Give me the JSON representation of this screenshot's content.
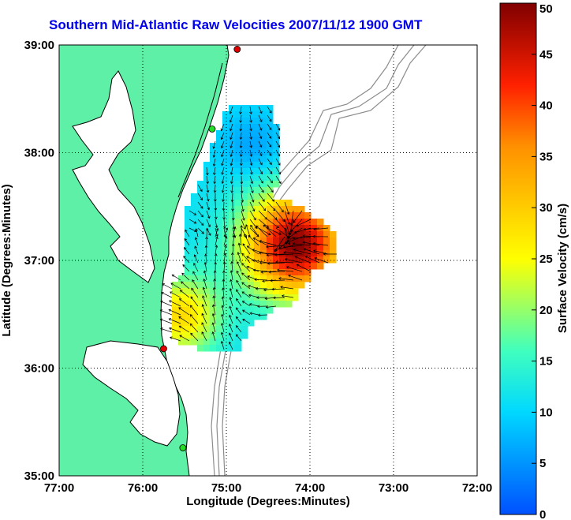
{
  "title": "Southern Mid-Atlantic Raw Velocities 2007/11/12 1900 GMT",
  "axes": {
    "xlabel": "Longitude (Degrees:Minutes)",
    "ylabel": "Latitude (Degrees:Minutes)",
    "xticks": [
      "77:00",
      "76:00",
      "75:00",
      "74:00",
      "73:00",
      "72:00"
    ],
    "yticks": [
      "39:00",
      "38:00",
      "37:00",
      "36:00",
      "35:00"
    ],
    "xlim": [
      -77,
      -72
    ],
    "ylim": [
      35,
      39
    ],
    "grid": "dotted"
  },
  "colorbar": {
    "label": "Surface Velocity (cm/s)",
    "ticks": [
      "0",
      "5",
      "10",
      "15",
      "20",
      "25",
      "30",
      "35",
      "40",
      "45",
      "50"
    ],
    "range": [
      0,
      50
    ]
  },
  "colors": {
    "land": "#5ef0a6",
    "ocean": "#ffffff",
    "coast": "#000000",
    "bathymetry": "#8c8c8c",
    "title": "#0000ee"
  },
  "stations": [
    {
      "color": "#e00000",
      "lon": -74.87,
      "lat": 38.96
    },
    {
      "color": "#22dd22",
      "lon": -75.17,
      "lat": 38.22
    },
    {
      "color": "#e00000",
      "lon": -75.75,
      "lat": 36.18
    },
    {
      "color": "#22dd22",
      "lon": -75.52,
      "lat": 35.26
    }
  ]
}
